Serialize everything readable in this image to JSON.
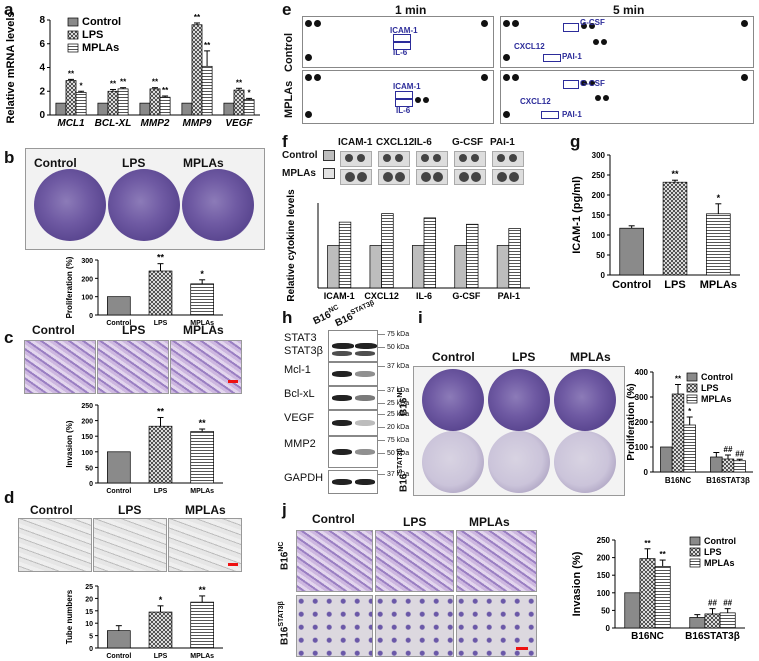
{
  "panels": {
    "a": "a",
    "b": "b",
    "c": "c",
    "d": "d",
    "e": "e",
    "f": "f",
    "g": "g",
    "h": "h",
    "i": "i",
    "j": "j"
  },
  "groups": {
    "control": "Control",
    "lps": "LPS",
    "mplas": "MPLAs"
  },
  "cell_lines": {
    "nc": "B16NC",
    "stat3b": "B16STAT3β"
  },
  "panel_e": {
    "time_1": "1 min",
    "time_5": "5 min",
    "row_control": "Control",
    "row_mplas": "MPLAs",
    "spots": [
      "ICAM-1",
      "IL-6",
      "G-CSF",
      "CXCL12",
      "PAI-1"
    ]
  },
  "panel_f": {
    "spot_row_control": "Control",
    "spot_row_mplas": "MPLAs",
    "legend_control_color": "#bdbdbd",
    "legend_mplas_color": "#e2e2e2"
  },
  "panel_h": {
    "lane1": "B16NC",
    "lane2": "B16STAT3β",
    "proteins": [
      "STAT3",
      "STAT3β",
      "Mcl-1",
      "Bcl-xL",
      "VEGF",
      "MMP2",
      "GAPDH"
    ],
    "markers": [
      "75 kDa",
      "50 kDa",
      "37 kDa",
      "37 kDa",
      "25 kDa",
      "25 kDa",
      "20 kDa",
      "75 kDa",
      "50 kDa",
      "37 kDa"
    ]
  },
  "chart_data": [
    {
      "panel": "a",
      "type": "bar",
      "categories": [
        "MCL1",
        "BCL-XL",
        "MMP2",
        "MMP9",
        "VEGF"
      ],
      "ylabel": "Relative mRNA levels",
      "ylim": [
        0,
        8
      ],
      "yticks": [
        0,
        2,
        4,
        6,
        8
      ],
      "series": [
        {
          "name": "Control",
          "values": [
            1,
            1,
            1,
            1,
            1
          ],
          "errors": [
            0,
            0,
            0,
            0,
            0
          ]
        },
        {
          "name": "LPS",
          "values": [
            2.9,
            2.0,
            2.2,
            7.6,
            2.1
          ],
          "errors": [
            0.1,
            0.15,
            0.1,
            0.15,
            0.15
          ]
        },
        {
          "name": "MPLAs",
          "values": [
            1.9,
            2.2,
            1.5,
            4.1,
            1.3
          ],
          "errors": [
            0.1,
            0.1,
            0.1,
            1.3,
            0.1
          ]
        }
      ],
      "significance": {
        "LPS": [
          "**",
          "**",
          "**",
          "**",
          "**"
        ],
        "MPLAs": [
          "*",
          "**",
          "**",
          "**",
          "*"
        ]
      }
    },
    {
      "panel": "b",
      "type": "bar",
      "categories": [
        "Control",
        "LPS",
        "MPLAs"
      ],
      "ylabel": "Proliferation (%)",
      "ylim": [
        0,
        300
      ],
      "yticks": [
        0,
        100,
        200,
        300
      ],
      "values": [
        100,
        240,
        170
      ],
      "errors": [
        0,
        40,
        22
      ],
      "significance": [
        "",
        "**",
        "*"
      ]
    },
    {
      "panel": "c",
      "type": "bar",
      "categories": [
        "Control",
        "LPS",
        "MPLAs"
      ],
      "ylabel": "Invasion (%)",
      "ylim": [
        0,
        250
      ],
      "yticks": [
        0,
        50,
        100,
        150,
        200,
        250
      ],
      "values": [
        100,
        182,
        165
      ],
      "errors": [
        0,
        28,
        8
      ],
      "significance": [
        "",
        "**",
        "**"
      ]
    },
    {
      "panel": "d",
      "type": "bar",
      "categories": [
        "Control",
        "LPS",
        "MPLAs"
      ],
      "ylabel": "Tube numbers",
      "ylim": [
        0,
        25
      ],
      "yticks": [
        0,
        5,
        10,
        15,
        20,
        25
      ],
      "values": [
        7,
        14.5,
        18.5
      ],
      "errors": [
        2,
        2.5,
        2.5
      ],
      "significance": [
        "",
        "*",
        "**"
      ]
    },
    {
      "panel": "f",
      "type": "bar",
      "categories": [
        "ICAM-1",
        "CXCL12",
        "IL-6",
        "G-CSF",
        "PAI-1"
      ],
      "ylabel": "Relative cytokine levels",
      "ylim": [
        0,
        2.0
      ],
      "series": [
        {
          "name": "Control",
          "values": [
            1,
            1,
            1,
            1,
            1
          ]
        },
        {
          "name": "MPLAs",
          "values": [
            1.55,
            1.75,
            1.65,
            1.5,
            1.4
          ]
        }
      ]
    },
    {
      "panel": "g",
      "type": "bar",
      "categories": [
        "Control",
        "LPS",
        "MPLAs"
      ],
      "ylabel": "ICAM-1 (pg/ml)",
      "ylim": [
        0,
        300
      ],
      "yticks": [
        0,
        50,
        100,
        150,
        200,
        250,
        300
      ],
      "values": [
        117,
        232,
        153
      ],
      "errors": [
        6,
        5,
        25
      ],
      "significance": [
        "",
        "**",
        "*"
      ]
    },
    {
      "panel": "i",
      "type": "bar",
      "categories": [
        "B16NC",
        "B16STAT3β"
      ],
      "ylabel": "Proliferation (%)",
      "ylim": [
        0,
        400
      ],
      "yticks": [
        0,
        100,
        200,
        300,
        400
      ],
      "series": [
        {
          "name": "Control",
          "values": [
            100,
            60
          ],
          "errors": [
            0,
            18
          ]
        },
        {
          "name": "LPS",
          "values": [
            312,
            52
          ],
          "errors": [
            38,
            16
          ]
        },
        {
          "name": "MPLAs",
          "values": [
            188,
            45
          ],
          "errors": [
            32,
            6
          ]
        }
      ],
      "significance": {
        "LPS": [
          "**",
          "##"
        ],
        "MPLAs": [
          "*",
          "##"
        ]
      }
    },
    {
      "panel": "j",
      "type": "bar",
      "categories": [
        "B16NC",
        "B16STAT3β"
      ],
      "ylabel": "Invasion (%)",
      "ylim": [
        0,
        250
      ],
      "yticks": [
        0,
        50,
        100,
        150,
        200,
        250
      ],
      "series": [
        {
          "name": "Control",
          "values": [
            100,
            30
          ],
          "errors": [
            0,
            8
          ]
        },
        {
          "name": "LPS",
          "values": [
            197,
            40
          ],
          "errors": [
            28,
            15
          ]
        },
        {
          "name": "MPLAs",
          "values": [
            175,
            43
          ],
          "errors": [
            18,
            12
          ]
        }
      ],
      "significance": {
        "LPS": [
          "**",
          "##"
        ],
        "MPLAs": [
          "**",
          "##"
        ]
      }
    }
  ]
}
